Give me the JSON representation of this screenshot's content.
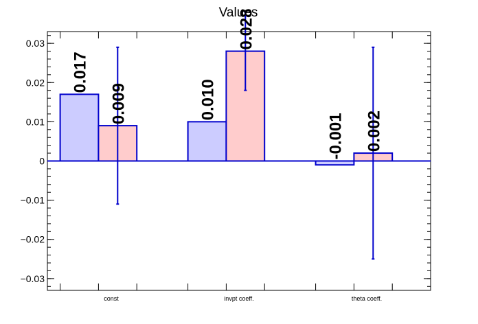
{
  "chart_data": {
    "type": "bar",
    "title": "Values",
    "categories": [
      "const",
      "invpt coeff.",
      "theta coeff."
    ],
    "series": [
      {
        "values": [
          0.017,
          0.01,
          -0.001
        ],
        "color": "#ccccff"
      },
      {
        "values": [
          0.009,
          0.028,
          0.002
        ],
        "color": "#ffcccc",
        "errors": [
          0.02,
          0.01,
          0.027
        ]
      }
    ],
    "data_labels": [
      [
        "0.017",
        "0.010",
        "-0.001"
      ],
      [
        "0.009",
        "0.028",
        "0.002"
      ]
    ],
    "ylim": [
      -0.033,
      0.033
    ],
    "yticks": [
      -0.03,
      -0.02,
      -0.01,
      0,
      0.01,
      0.02,
      0.03
    ],
    "ytick_labels": [
      "−0.03",
      "−0.02",
      "−0.01",
      "0",
      "0.01",
      "0.02",
      "0.03"
    ],
    "xlabel": "",
    "ylabel": "",
    "grid": false,
    "bar_edge_color": "#0000cc",
    "error_color": "#0000cc"
  }
}
